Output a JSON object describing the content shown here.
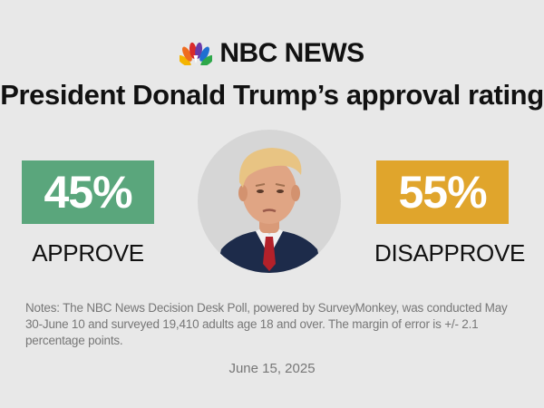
{
  "brand": {
    "name": "NBC NEWS",
    "logo_icon": "peacock-icon"
  },
  "headline": "President Donald Trump’s approval rating",
  "results": {
    "approve": {
      "value": "45%",
      "label": "APPROVE",
      "color": "#5aa67c"
    },
    "disapprove": {
      "value": "55%",
      "label": "DISAPPROVE",
      "color": "#e0a52c"
    }
  },
  "portrait_icon": "portrait-photo",
  "notes": "Notes: The NBC News Decision Desk Poll, powered by SurveyMonkey, was conducted May 30-June 10 and surveyed 19,410 adults age 18 and over. The margin of error is +/- 2.1 percentage points.",
  "date": "June 15, 2025",
  "colors": {
    "background": "#e8e8e8",
    "text": "#111111",
    "muted_text": "#777777"
  }
}
